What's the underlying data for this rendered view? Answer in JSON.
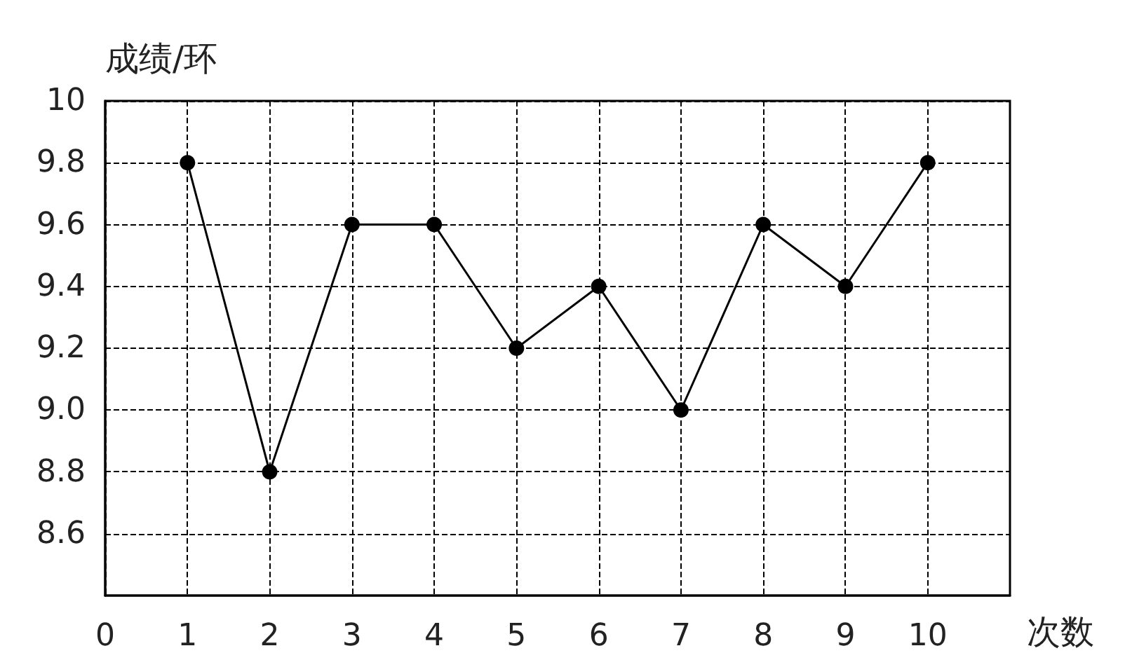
{
  "chart_data": {
    "type": "line",
    "xlabel": "次数",
    "ylabel": "成绩/环",
    "x": [
      1,
      2,
      3,
      4,
      5,
      6,
      7,
      8,
      9,
      10
    ],
    "series": [
      {
        "color": "#000000",
        "values": [
          9.8,
          8.8,
          9.6,
          9.6,
          9.2,
          9.4,
          9.0,
          9.6,
          9.4,
          9.8
        ]
      }
    ],
    "xlim": [
      0,
      11
    ],
    "xticks": [
      0,
      1,
      2,
      3,
      4,
      5,
      6,
      7,
      8,
      9,
      10
    ],
    "ylim": [
      8.4,
      10
    ],
    "yticks": [
      {
        "value": 8.6,
        "label": "8.6"
      },
      {
        "value": 8.8,
        "label": "8.8"
      },
      {
        "value": 9.0,
        "label": "9.0"
      },
      {
        "value": 9.2,
        "label": "9.2"
      },
      {
        "value": 9.4,
        "label": "9.4"
      },
      {
        "value": 9.6,
        "label": "9.6"
      },
      {
        "value": 9.8,
        "label": "9.8"
      },
      {
        "value": 10,
        "label": "10"
      }
    ],
    "grid": true,
    "marker": "circle",
    "line_style": "solid"
  }
}
